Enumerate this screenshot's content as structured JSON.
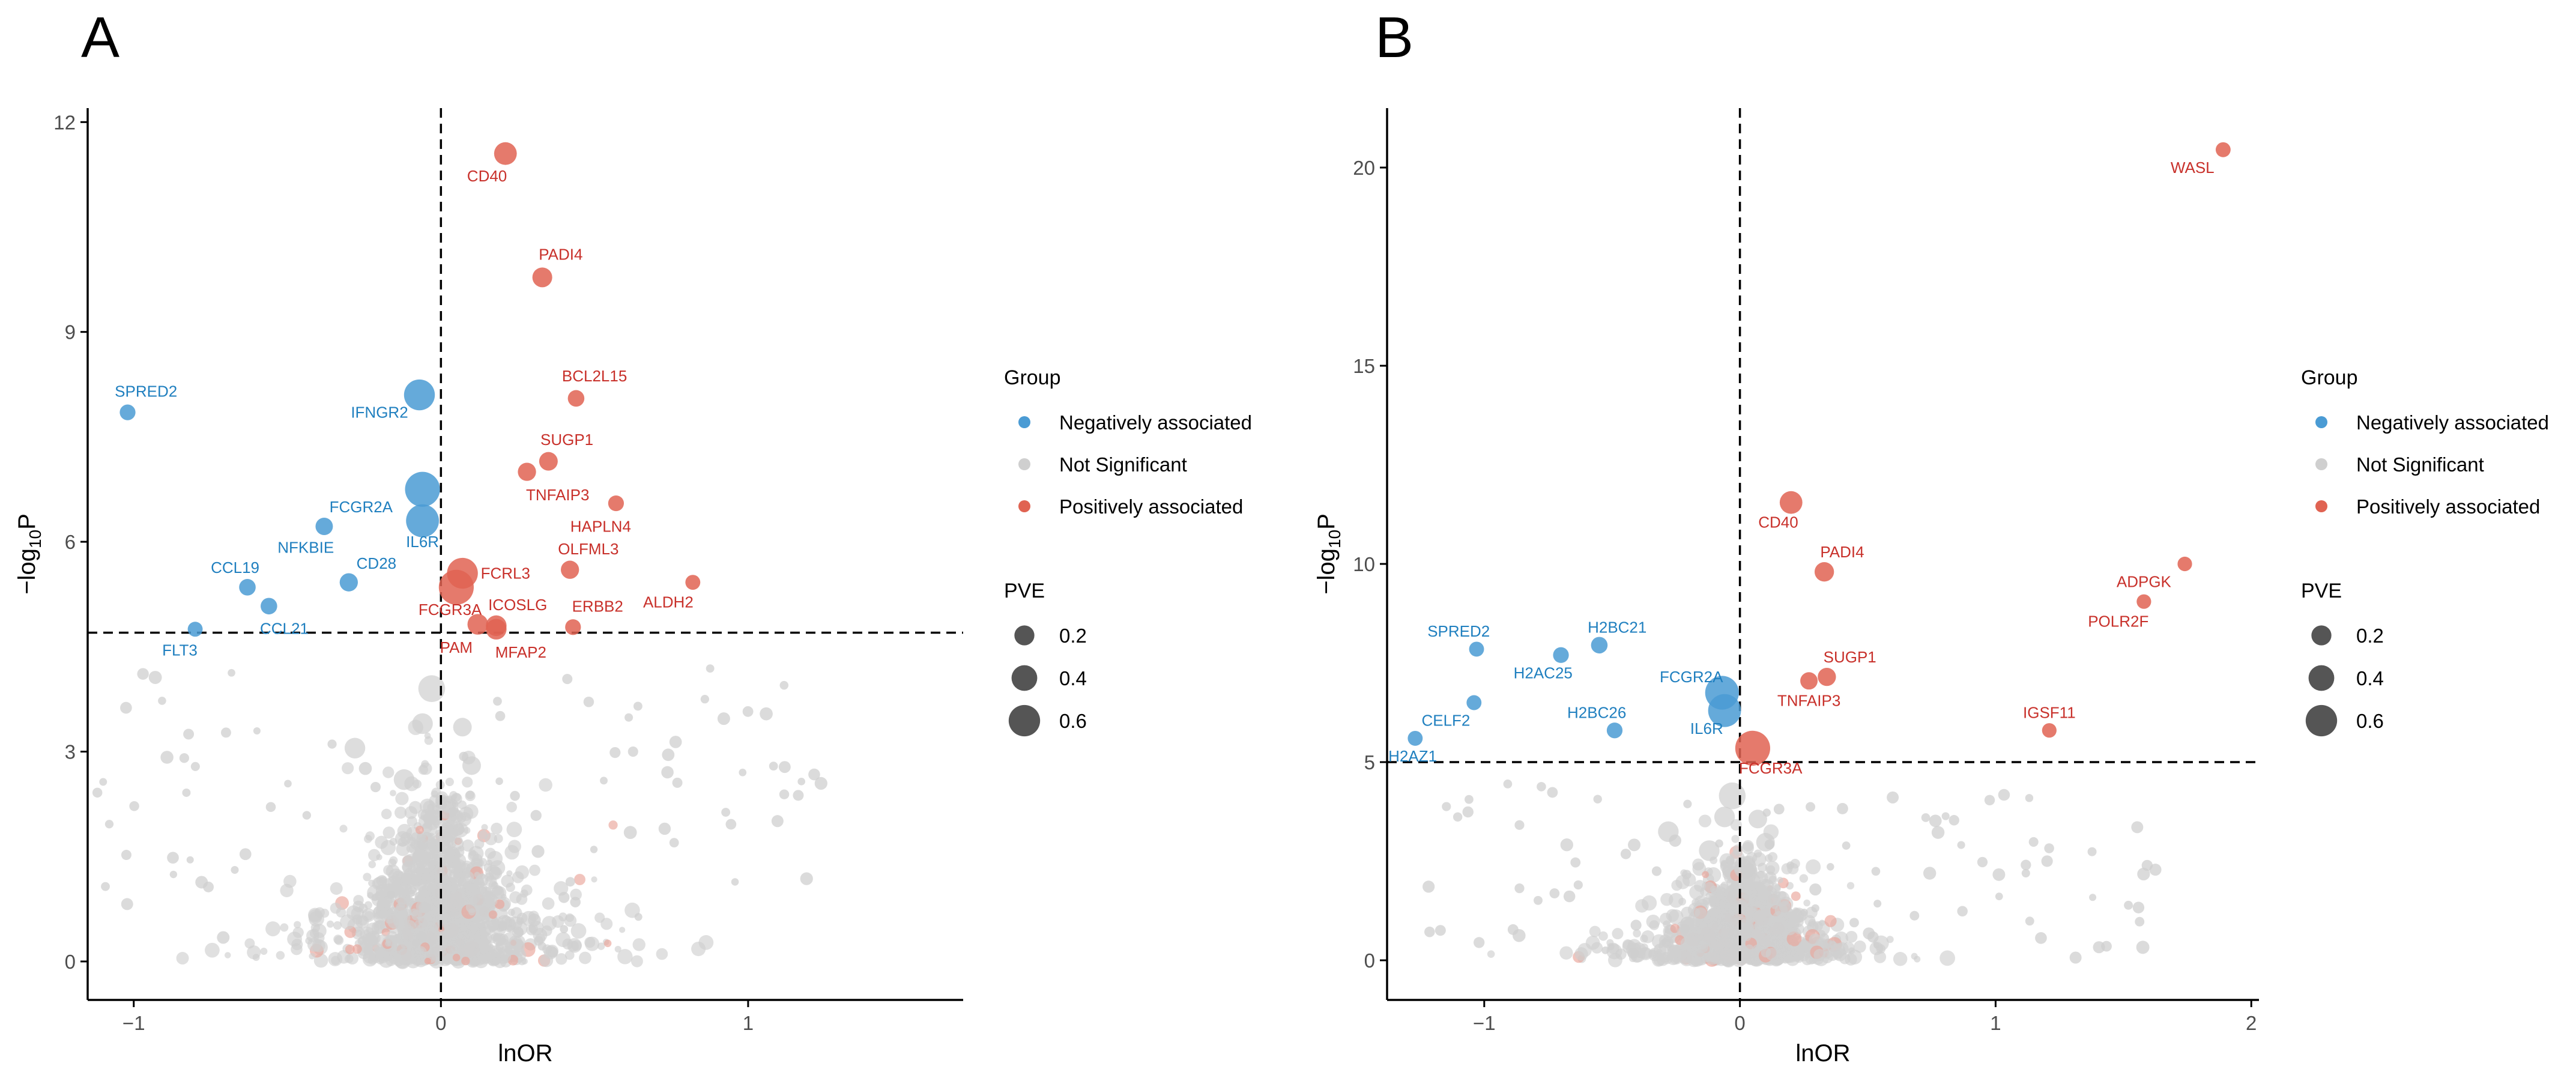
{
  "colors": {
    "negative": "#4a9bd4",
    "negative_text": "#1f7fbf",
    "not_significant": "#cfcfcf",
    "positive": "#e06352",
    "positive_text": "#c8302a",
    "axis": "#000000"
  },
  "chart_data": [
    {
      "panel": "A",
      "type": "scatter",
      "xlabel": "lnOR",
      "ylabel": "−log10P",
      "xlim": [
        -1.15,
        1.7
      ],
      "ylim": [
        -0.55,
        12.2
      ],
      "xticks": [
        -1,
        0,
        1
      ],
      "yticks": [
        0,
        3,
        6,
        9,
        12
      ],
      "threshold_y": 4.7,
      "threshold_x": 0,
      "labeled_points": [
        {
          "gene": "CD40",
          "x": 0.21,
          "y": 11.55,
          "pve": 0.35,
          "group": "positive",
          "label_dx": -0.06,
          "label_dy": -0.32
        },
        {
          "gene": "PADI4",
          "x": 0.33,
          "y": 9.78,
          "pve": 0.28,
          "group": "positive",
          "label_dx": 0.06,
          "label_dy": 0.33
        },
        {
          "gene": "BCL2L15",
          "x": 0.44,
          "y": 8.05,
          "pve": 0.2,
          "group": "positive",
          "label_dx": 0.06,
          "label_dy": 0.32
        },
        {
          "gene": "SUGP1",
          "x": 0.35,
          "y": 7.15,
          "pve": 0.25,
          "group": "positive",
          "label_dx": 0.06,
          "label_dy": 0.31
        },
        {
          "gene": "TNFAIP3",
          "x": 0.28,
          "y": 7.0,
          "pve": 0.24,
          "group": "positive",
          "label_dx": 0.1,
          "label_dy": -0.33
        },
        {
          "gene": "HAPLN4",
          "x": 0.57,
          "y": 6.55,
          "pve": 0.18,
          "group": "positive",
          "label_dx": -0.05,
          "label_dy": -0.33
        },
        {
          "gene": "OLFML3",
          "x": 0.42,
          "y": 5.6,
          "pve": 0.24,
          "group": "positive",
          "label_dx": 0.06,
          "label_dy": 0.3
        },
        {
          "gene": "ALDH2",
          "x": 0.82,
          "y": 5.42,
          "pve": 0.16,
          "group": "positive",
          "label_dx": -0.08,
          "label_dy": -0.28
        },
        {
          "gene": "FCRL3",
          "x": 0.07,
          "y": 5.55,
          "pve": 0.55,
          "group": "positive",
          "label_dx": 0.14,
          "label_dy": 0.0
        },
        {
          "gene": "FCGR3A",
          "x": 0.05,
          "y": 5.35,
          "pve": 0.65,
          "group": "positive",
          "label_dx": -0.02,
          "label_dy": -0.32
        },
        {
          "gene": "ICOSLG",
          "x": 0.18,
          "y": 4.8,
          "pve": 0.3,
          "group": "positive",
          "label_dx": 0.07,
          "label_dy": 0.3
        },
        {
          "gene": "ERBB2",
          "x": 0.43,
          "y": 4.78,
          "pve": 0.18,
          "group": "positive",
          "label_dx": 0.08,
          "label_dy": 0.3
        },
        {
          "gene": "PAM",
          "x": 0.12,
          "y": 4.82,
          "pve": 0.3,
          "group": "positive",
          "label_dx": -0.07,
          "label_dy": -0.33
        },
        {
          "gene": "MFAP2",
          "x": 0.18,
          "y": 4.75,
          "pve": 0.3,
          "group": "positive",
          "label_dx": 0.08,
          "label_dy": -0.33
        },
        {
          "gene": "SPRED2",
          "x": -1.02,
          "y": 7.85,
          "pve": 0.18,
          "group": "negative",
          "label_dx": 0.06,
          "label_dy": 0.3
        },
        {
          "gene": "IFNGR2",
          "x": -0.07,
          "y": 8.1,
          "pve": 0.55,
          "group": "negative",
          "label_dx": -0.13,
          "label_dy": -0.25
        },
        {
          "gene": "FCGR2A",
          "x": -0.06,
          "y": 6.75,
          "pve": 0.65,
          "group": "negative",
          "label_dx": -0.2,
          "label_dy": -0.25
        },
        {
          "gene": "IL6R",
          "x": -0.06,
          "y": 6.3,
          "pve": 0.6,
          "group": "negative",
          "label_dx": 0.0,
          "label_dy": -0.3
        },
        {
          "gene": "NFKBIE",
          "x": -0.38,
          "y": 6.22,
          "pve": 0.22,
          "group": "negative",
          "label_dx": -0.06,
          "label_dy": -0.3
        },
        {
          "gene": "CD28",
          "x": -0.3,
          "y": 5.42,
          "pve": 0.24,
          "group": "negative",
          "label_dx": 0.09,
          "label_dy": 0.27
        },
        {
          "gene": "CCL19",
          "x": -0.63,
          "y": 5.35,
          "pve": 0.2,
          "group": "negative",
          "label_dx": -0.04,
          "label_dy": 0.28
        },
        {
          "gene": "CCL21",
          "x": -0.56,
          "y": 5.08,
          "pve": 0.2,
          "group": "negative",
          "label_dx": 0.05,
          "label_dy": -0.32
        },
        {
          "gene": "FLT3",
          "x": -0.8,
          "y": 4.75,
          "pve": 0.16,
          "group": "negative",
          "label_dx": -0.05,
          "label_dy": -0.3
        }
      ]
    },
    {
      "panel": "B",
      "type": "scatter",
      "xlabel": "lnOR",
      "ylabel": "−log10P",
      "xlim": [
        -1.38,
        2.03
      ],
      "ylim": [
        -1.0,
        21.5
      ],
      "xticks": [
        -1,
        0,
        1,
        2
      ],
      "yticks": [
        0,
        5,
        10,
        15,
        20
      ],
      "threshold_y": 5.0,
      "threshold_x": 0,
      "labeled_points": [
        {
          "gene": "WASL",
          "x": 1.89,
          "y": 20.45,
          "pve": 0.16,
          "group": "positive",
          "label_dx": -0.12,
          "label_dy": -0.45
        },
        {
          "gene": "ADPGK",
          "x": 1.74,
          "y": 10.0,
          "pve": 0.15,
          "group": "positive",
          "label_dx": -0.16,
          "label_dy": -0.45
        },
        {
          "gene": "POLR2F",
          "x": 1.58,
          "y": 9.05,
          "pve": 0.15,
          "group": "positive",
          "label_dx": -0.1,
          "label_dy": -0.5
        },
        {
          "gene": "IGSF11",
          "x": 1.21,
          "y": 5.8,
          "pve": 0.15,
          "group": "positive",
          "label_dx": 0.0,
          "label_dy": 0.45
        },
        {
          "gene": "CD40",
          "x": 0.2,
          "y": 11.55,
          "pve": 0.35,
          "group": "positive",
          "label_dx": -0.05,
          "label_dy": -0.5
        },
        {
          "gene": "PADI4",
          "x": 0.33,
          "y": 9.8,
          "pve": 0.27,
          "group": "positive",
          "label_dx": 0.07,
          "label_dy": 0.5
        },
        {
          "gene": "SUGP1",
          "x": 0.34,
          "y": 7.15,
          "pve": 0.24,
          "group": "positive",
          "label_dx": 0.09,
          "label_dy": 0.5
        },
        {
          "gene": "TNFAIP3",
          "x": 0.27,
          "y": 7.05,
          "pve": 0.22,
          "group": "positive",
          "label_dx": 0.0,
          "label_dy": -0.5
        },
        {
          "gene": "FCGR3A",
          "x": 0.05,
          "y": 5.35,
          "pve": 0.65,
          "group": "positive",
          "label_dx": 0.07,
          "label_dy": -0.5
        },
        {
          "gene": "SPRED2",
          "x": -1.03,
          "y": 7.85,
          "pve": 0.16,
          "group": "negative",
          "label_dx": -0.07,
          "label_dy": 0.45
        },
        {
          "gene": "H2BC21",
          "x": -0.55,
          "y": 7.95,
          "pve": 0.2,
          "group": "negative",
          "label_dx": 0.07,
          "label_dy": 0.45
        },
        {
          "gene": "H2AC25",
          "x": -0.7,
          "y": 7.7,
          "pve": 0.18,
          "group": "negative",
          "label_dx": -0.07,
          "label_dy": -0.45
        },
        {
          "gene": "FCGR2A",
          "x": -0.07,
          "y": 6.75,
          "pve": 0.62,
          "group": "negative",
          "label_dx": -0.12,
          "label_dy": 0.4
        },
        {
          "gene": "IL6R",
          "x": -0.06,
          "y": 6.3,
          "pve": 0.6,
          "group": "negative",
          "label_dx": -0.07,
          "label_dy": -0.45
        },
        {
          "gene": "H2BC26",
          "x": -0.49,
          "y": 5.8,
          "pve": 0.18,
          "group": "negative",
          "label_dx": -0.07,
          "label_dy": 0.45
        },
        {
          "gene": "CELF2",
          "x": -1.04,
          "y": 6.5,
          "pve": 0.16,
          "group": "negative",
          "label_dx": -0.11,
          "label_dy": -0.45
        },
        {
          "gene": "H2AZ1",
          "x": -1.27,
          "y": 5.6,
          "pve": 0.16,
          "group": "negative",
          "label_dx": -0.01,
          "label_dy": -0.45
        }
      ]
    }
  ],
  "legend": {
    "group_title": "Group",
    "group_items": [
      "Negatively associated",
      "Not Significant",
      "Positively associated"
    ],
    "pve_title": "PVE",
    "pve_items": [
      "0.2",
      "0.4",
      "0.6"
    ],
    "pve_values": [
      0.2,
      0.4,
      0.6
    ]
  }
}
